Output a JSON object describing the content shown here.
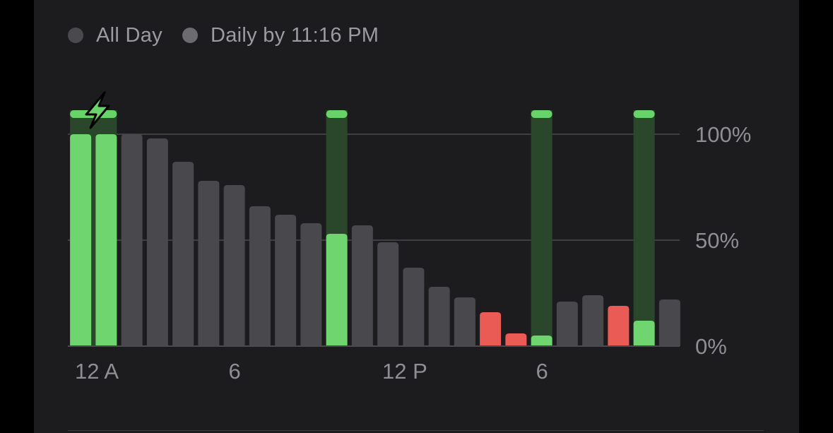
{
  "legend": [
    {
      "label": "All Day",
      "color": "#4a4a4e"
    },
    {
      "label": "Daily by 11:16 PM",
      "color": "#6b6b70"
    }
  ],
  "colors": {
    "neutral": "#49494d",
    "charging": "#6fd56f",
    "low": "#eb5b55",
    "charge_band": "#2a472b",
    "charge_cap": "#68d368",
    "grid": "#4b4b4f",
    "tick_text": "#8e8e93",
    "bolt": "#6cd26c"
  },
  "chart_data": {
    "type": "bar",
    "title": "",
    "xlabel": "",
    "ylabel": "",
    "ylim": [
      0,
      100
    ],
    "y_ticks": [
      "100%",
      "50%",
      "0%"
    ],
    "y_tick_values": [
      100,
      50,
      0
    ],
    "x_tick_labels": [
      {
        "label": "12 A",
        "hour": 0
      },
      {
        "label": "6",
        "hour": 6
      },
      {
        "label": "12 P",
        "hour": 12
      },
      {
        "label": "6",
        "hour": 18
      }
    ],
    "hours": [
      0,
      1,
      2,
      3,
      4,
      5,
      6,
      7,
      8,
      9,
      10,
      11,
      12,
      13,
      14,
      15,
      16,
      17,
      18,
      19,
      20,
      21,
      22,
      23
    ],
    "values": [
      100,
      100,
      100,
      98,
      87,
      78,
      76,
      66,
      62,
      58,
      53,
      57,
      49,
      37,
      28,
      23,
      16,
      6,
      5,
      21,
      24,
      19,
      12,
      22
    ],
    "status": [
      "charging",
      "charging",
      "normal",
      "normal",
      "normal",
      "normal",
      "normal",
      "normal",
      "normal",
      "normal",
      "charging",
      "normal",
      "normal",
      "normal",
      "normal",
      "normal",
      "low",
      "low",
      "charging",
      "normal",
      "normal",
      "low",
      "charging",
      "normal"
    ],
    "charging_periods": [
      {
        "from_hour": 0,
        "to_hour": 2,
        "fast_charge_icon": "lightning-bolt-icon"
      },
      {
        "from_hour": 10,
        "to_hour": 11
      },
      {
        "from_hour": 18,
        "to_hour": 19
      },
      {
        "from_hour": 22,
        "to_hour": 23
      }
    ],
    "grid": true
  }
}
